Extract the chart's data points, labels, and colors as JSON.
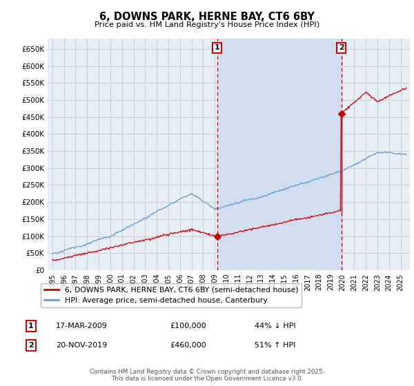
{
  "title": "6, DOWNS PARK, HERNE BAY, CT6 6BY",
  "subtitle": "Price paid vs. HM Land Registry's House Price Index (HPI)",
  "ylabel_ticks": [
    "£0",
    "£50K",
    "£100K",
    "£150K",
    "£200K",
    "£250K",
    "£300K",
    "£350K",
    "£400K",
    "£450K",
    "£500K",
    "£550K",
    "£600K",
    "£650K"
  ],
  "ytick_values": [
    0,
    50000,
    100000,
    150000,
    200000,
    250000,
    300000,
    350000,
    400000,
    450000,
    500000,
    550000,
    600000,
    650000
  ],
  "ylim": [
    0,
    680000
  ],
  "xlim_start": 1994.6,
  "xlim_end": 2025.8,
  "xticks": [
    1995,
    1996,
    1997,
    1998,
    1999,
    2000,
    2001,
    2002,
    2003,
    2004,
    2005,
    2006,
    2007,
    2008,
    2009,
    2010,
    2011,
    2012,
    2013,
    2014,
    2015,
    2016,
    2017,
    2018,
    2019,
    2020,
    2021,
    2022,
    2023,
    2024,
    2025
  ],
  "sale1_x": 2009.21,
  "sale1_y": 100000,
  "sale1_label": "1",
  "sale1_date": "17-MAR-2009",
  "sale1_price": "£100,000",
  "sale1_pct": "44% ↓ HPI",
  "sale2_x": 2019.9,
  "sale2_y": 460000,
  "sale2_label": "2",
  "sale2_date": "20-NOV-2019",
  "sale2_price": "£460,000",
  "sale2_pct": "51% ↑ HPI",
  "red_color": "#cc0000",
  "blue_color": "#6699cc",
  "vline_color": "#cc0000",
  "grid_color": "#cccccc",
  "bg_color": "#e8eef8",
  "shade_color": "#d0ddf0",
  "legend_label_red": "6, DOWNS PARK, HERNE BAY, CT6 6BY (semi-detached house)",
  "legend_label_blue": "HPI: Average price, semi-detached house, Canterbury",
  "footer": "Contains HM Land Registry data © Crown copyright and database right 2025.\nThis data is licensed under the Open Government Licence v3.0."
}
